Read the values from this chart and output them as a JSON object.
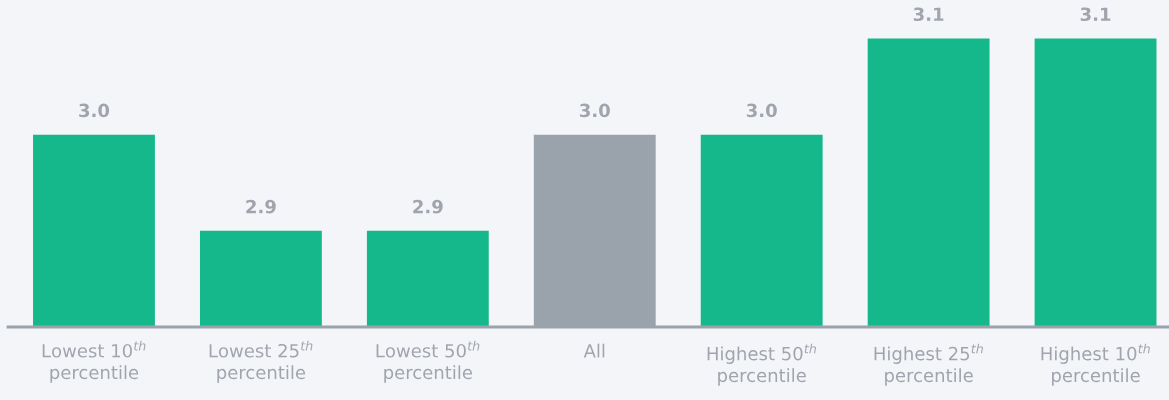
{
  "chart_data": {
    "type": "bar",
    "categories": [
      "Lowest 10$^{th}$\npercentile",
      "Lowest 25$^{th}$\npercentile",
      "Lowest 50$^{th}$\npercentile",
      "All",
      "Highest 50$^{th}$\npercentile",
      "Highest 25$^{th}$\npercentile",
      "Highest 10$^{th}$\npercentile"
    ],
    "values": [
      3.0,
      2.9,
      2.9,
      3.0,
      3.0,
      3.1,
      3.1
    ],
    "colors": [
      "#14b88a",
      "#14b88a",
      "#14b88a",
      "#9aa3ab",
      "#14b88a",
      "#14b88a",
      "#14b88a"
    ],
    "value_labels": [
      "3.0",
      "2.9",
      "2.9",
      "3.0",
      "3.0",
      "3.1",
      "3.1"
    ],
    "ylim": [
      2.8,
      3.14
    ],
    "tick_labels": "x",
    "grid": false,
    "legend": false
  }
}
